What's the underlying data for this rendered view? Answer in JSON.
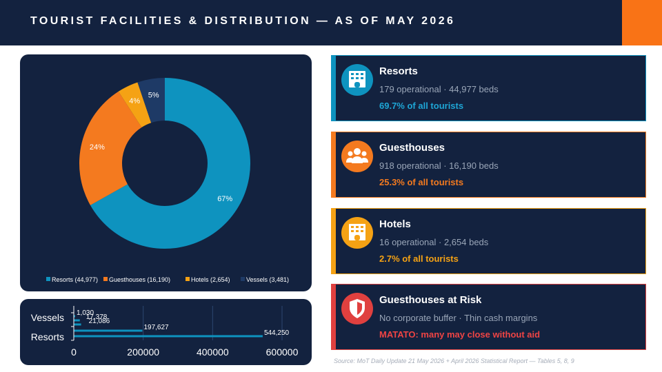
{
  "header": {
    "title": "TOURIST FACILITIES & DISTRIBUTION  —  AS OF MAY 2026"
  },
  "colors": {
    "resorts": "#0e93bf",
    "guesthouses": "#f47a1f",
    "hotels": "#f5a214",
    "vessels": "#1e3a66",
    "risk": "#e0403f",
    "navy": "#13223f",
    "accent": "#f97316"
  },
  "chart_data": [
    {
      "type": "pie",
      "variant": "donut",
      "labels": [
        "Resorts (44,977)",
        "Guesthouses (16,190)",
        "Hotels (2,654)",
        "Vessels (3,481)"
      ],
      "values": [
        44977,
        16190,
        2654,
        3481
      ],
      "data_labels": [
        "67%",
        "24%",
        "4%",
        "5%"
      ],
      "legend_position": "bottom"
    },
    {
      "type": "bar",
      "orientation": "horizontal",
      "categories_shown": [
        "Vessels",
        "Resorts"
      ],
      "bars": [
        {
          "label": "1,030",
          "value": 1030
        },
        {
          "label": "17,378",
          "value": 17378
        },
        {
          "label": "21,086",
          "value": 21086
        },
        {
          "label": "197,627",
          "value": 197627
        },
        {
          "label": "544,250",
          "value": 544250
        }
      ],
      "x_ticks": [
        "0",
        "200000",
        "400000",
        "600000"
      ],
      "xlim": [
        0,
        600000
      ],
      "grid": true
    }
  ],
  "cards": [
    {
      "title": "Resorts",
      "detail": "179 operational  ·  44,977 beds",
      "stat": "69.7% of all tourists",
      "icon": "building-icon"
    },
    {
      "title": "Guesthouses",
      "detail": "918 operational  ·  16,190 beds",
      "stat": "25.3% of all tourists",
      "icon": "people-icon"
    },
    {
      "title": "Hotels",
      "detail": "16 operational  ·  2,654 beds",
      "stat": "2.7% of all tourists",
      "icon": "building-icon"
    },
    {
      "title": "Guesthouses at Risk",
      "detail": "No corporate buffer  ·  Thin cash margins",
      "stat": "MATATO: many may close without aid",
      "icon": "shield-icon"
    }
  ],
  "source": "Source: MoT Daily Update 21 May 2026 + April 2026 Statistical Report — Tables 5, 8, 9"
}
